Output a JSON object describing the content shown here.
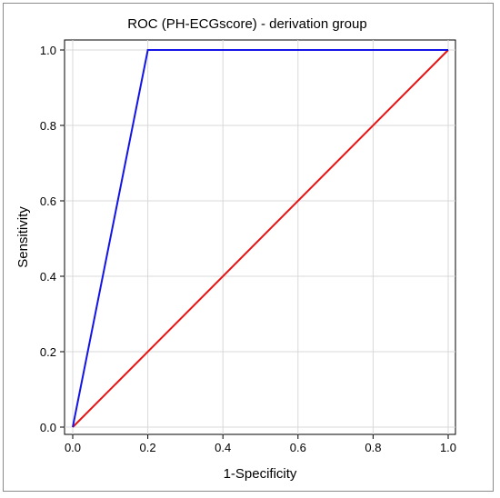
{
  "chart_data": {
    "type": "line",
    "title": "ROC (PH-ECGscore) - derivation group",
    "xlabel": "1-Specificity",
    "ylabel": "Sensitivity",
    "xlim": [
      0,
      1
    ],
    "ylim": [
      0,
      1
    ],
    "x_ticks": [
      "0.0",
      "0.2",
      "0.4",
      "0.6",
      "0.8",
      "1.0"
    ],
    "y_ticks": [
      "0.0",
      "0.2",
      "0.4",
      "0.6",
      "0.8",
      "1.0"
    ],
    "grid": true,
    "series": [
      {
        "color": "#1414e6",
        "x": [
          0.0,
          0.2,
          1.0
        ],
        "y": [
          0.0,
          1.0,
          1.0
        ]
      },
      {
        "color": "#e61414",
        "x": [
          0.0,
          1.0
        ],
        "y": [
          0.0,
          1.0
        ]
      }
    ]
  }
}
